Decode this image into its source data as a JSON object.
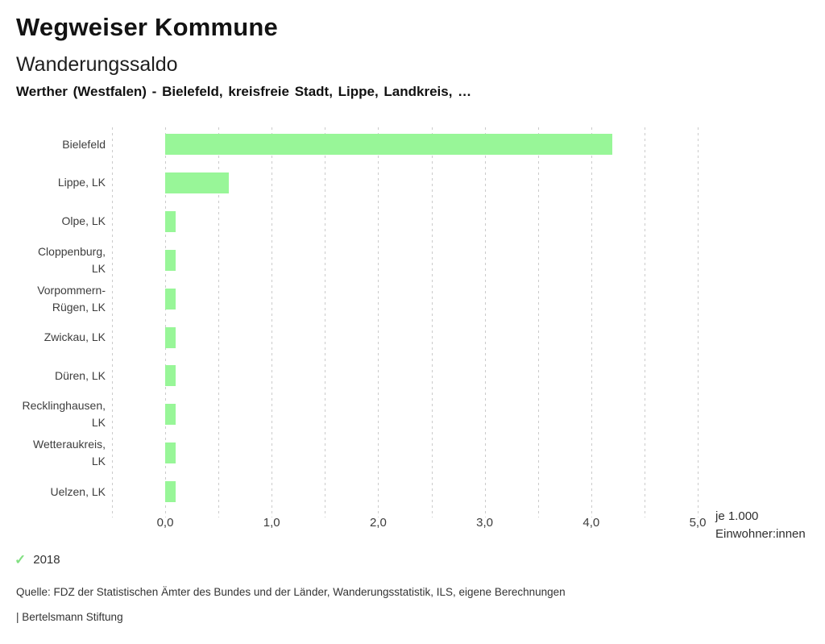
{
  "page": {
    "title": "Wegweiser Kommune",
    "subtitle": "Wanderungssaldo",
    "selection": "Werther (Westfalen) - Bielefeld, kreisfreie Stadt, Lippe, Landkreis, …"
  },
  "chart_data": {
    "type": "bar",
    "orientation": "horizontal",
    "title": "Wanderungssaldo",
    "categories": [
      "Bielefeld",
      "Lippe, LK",
      "Olpe, LK",
      "Cloppenburg, LK",
      "Vorpommern-Rügen, LK",
      "Zwickau, LK",
      "Düren, LK",
      "Recklinghausen, LK",
      "Wetteraukreis, LK",
      "Uelzen, LK"
    ],
    "category_lines": [
      [
        "Bielefeld"
      ],
      [
        "Lippe, LK"
      ],
      [
        "Olpe, LK"
      ],
      [
        "Cloppenburg,",
        "LK"
      ],
      [
        "Vorpommern-",
        "Rügen, LK"
      ],
      [
        "Zwickau, LK"
      ],
      [
        "Düren, LK"
      ],
      [
        "Recklinghausen,",
        "LK"
      ],
      [
        "Wetteraukreis,",
        "LK"
      ],
      [
        "Uelzen, LK"
      ]
    ],
    "series": [
      {
        "name": "2018",
        "values": [
          4.2,
          0.6,
          0.1,
          0.1,
          0.1,
          0.1,
          0.1,
          0.1,
          0.1,
          0.1
        ]
      }
    ],
    "xlim": [
      -0.5,
      5.0
    ],
    "gridline_step": 0.5,
    "x_ticks": [
      0.0,
      1.0,
      2.0,
      3.0,
      4.0,
      5.0
    ],
    "x_tick_labels": [
      "0,0",
      "1,0",
      "2,0",
      "3,0",
      "4,0",
      "5,0"
    ],
    "xlabel": "je 1.000 Einwohner:innen",
    "unit_label_lines": [
      "je 1.000",
      "Einwohner:innen"
    ],
    "ylabel": "",
    "grid": "dashed-vertical",
    "grid_color": "#cbcbcb",
    "bar_color": "#98f698",
    "legend": {
      "position": "bottom-left",
      "items": [
        {
          "label": "2018",
          "marker": "check",
          "glyph": "✓",
          "color": "#82e082"
        }
      ]
    }
  },
  "footer": {
    "source": "Quelle: FDZ der Statistischen Ämter des Bundes und der Länder, Wanderungsstatistik, ILS, eigene Berechnungen",
    "branding": "| Bertelsmann Stiftung"
  }
}
